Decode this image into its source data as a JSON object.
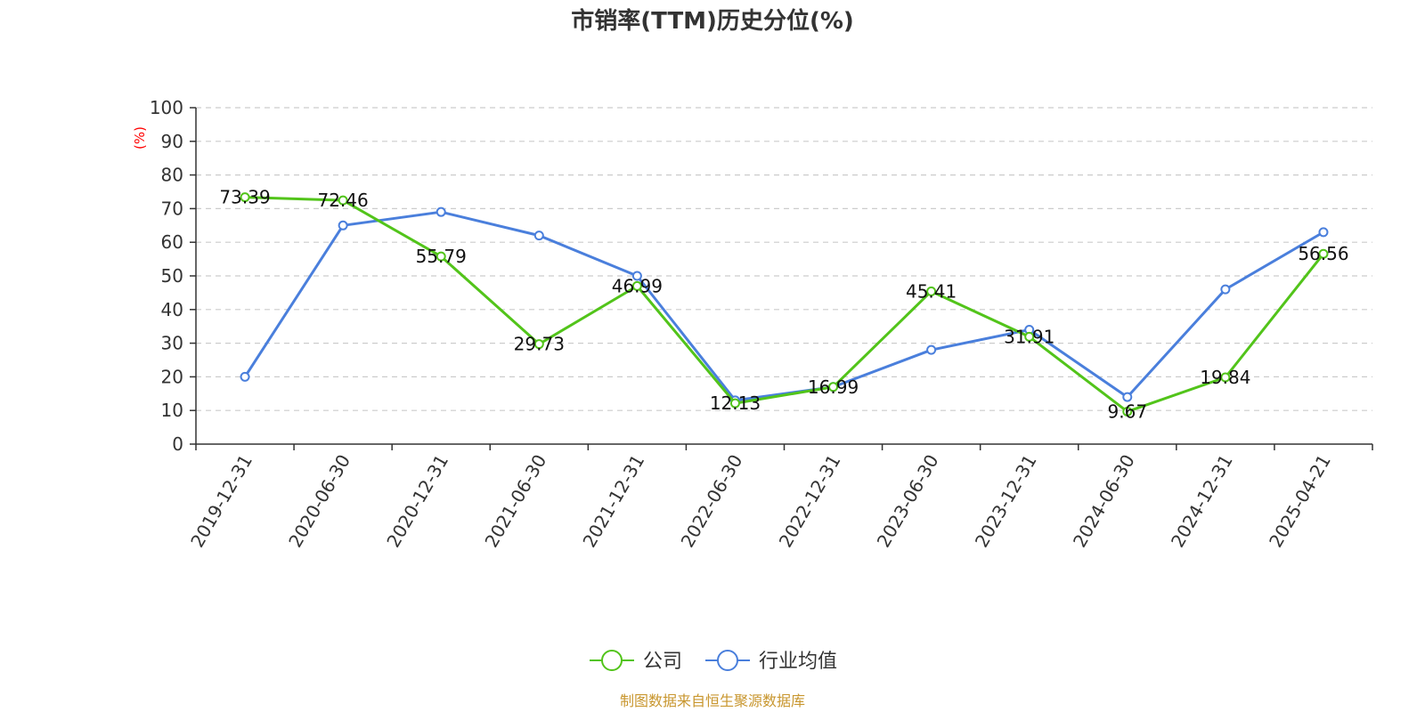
{
  "chart_data": {
    "type": "line",
    "title": "市销率(TTM)历史分位(%)",
    "ylabel": "(%)",
    "ylim": [
      0,
      100
    ],
    "yticks": [
      0,
      10,
      20,
      30,
      40,
      50,
      60,
      70,
      80,
      90,
      100
    ],
    "grid": true,
    "categories": [
      "2019-12-31",
      "2020-06-30",
      "2020-12-31",
      "2021-06-30",
      "2021-12-31",
      "2022-06-30",
      "2022-12-31",
      "2023-06-30",
      "2023-12-31",
      "2024-06-30",
      "2024-12-31",
      "2025-04-21"
    ],
    "series": [
      {
        "name": "公司",
        "color": "#52c41a",
        "values": [
          73.39,
          72.46,
          55.79,
          29.73,
          46.99,
          12.13,
          16.99,
          45.41,
          31.91,
          9.67,
          19.84,
          56.56
        ],
        "labels": [
          "73.39",
          "72.46",
          "55.79",
          "29.73",
          "46.99",
          "12.13",
          "16.99",
          "45.41",
          "31.91",
          "9.67",
          "19.84",
          "56.56"
        ]
      },
      {
        "name": "行业均值",
        "color": "#4a7fdc",
        "values": [
          20,
          65,
          69,
          62,
          50,
          13,
          17,
          28,
          34,
          14,
          46,
          63
        ]
      }
    ],
    "legend_position": "bottom-center",
    "source": "制图数据来自恒生聚源数据库",
    "source_color": "#c8962e",
    "unit_color": "#ff0000"
  }
}
